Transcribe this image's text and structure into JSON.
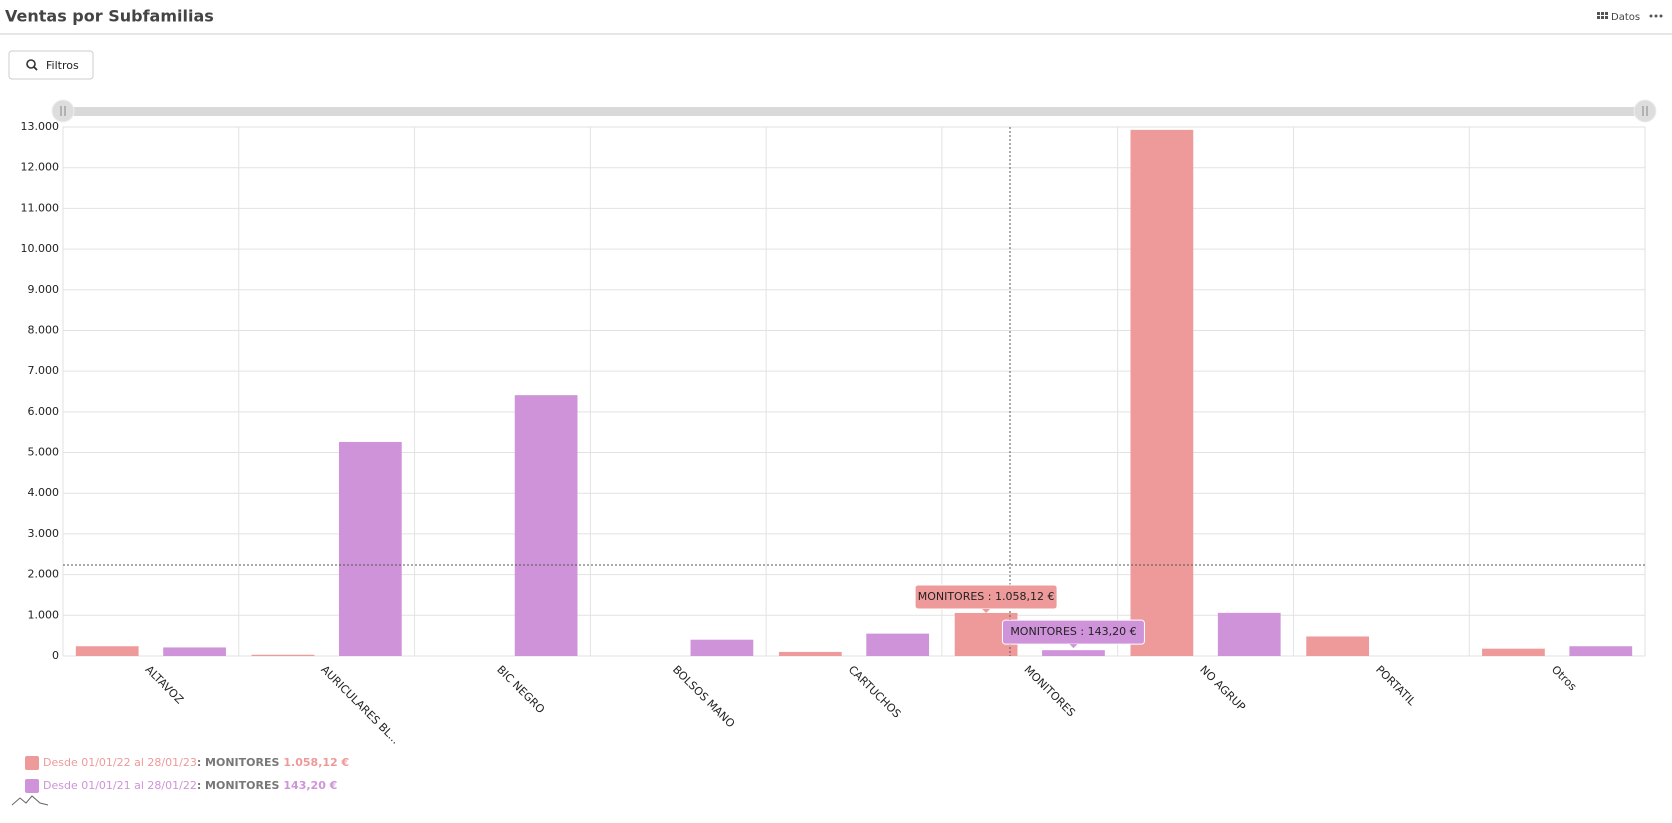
{
  "header": {
    "title": "Ventas por Subfamilias",
    "data_button": "Datos",
    "filter_button": "Filtros"
  },
  "chart_data": {
    "type": "bar",
    "categories": [
      "ALTAVOZ",
      "AURICULARES BL...",
      "BIC NEGRO",
      "BOLSOS MANO",
      "CARTUCHOS",
      "MONITORES",
      "NO AGRUP",
      "PORTATIL",
      "Otros"
    ],
    "series": [
      {
        "name": "Desde 01/01/22 al 28/01/23",
        "color": "#ee9a9a",
        "values": [
          240,
          30,
          0,
          0,
          100,
          1058.12,
          12930,
          480,
          180
        ],
        "value_labels": [
          null,
          null,
          null,
          null,
          null,
          "MONITORES : 1.058,12 €",
          null,
          null,
          null
        ]
      },
      {
        "name": "Desde 01/01/21 al 28/01/22",
        "color": "#cf93d9",
        "values": [
          210,
          5260,
          6410,
          400,
          550,
          143.2,
          1060,
          0,
          240
        ],
        "value_labels": [
          null,
          null,
          null,
          null,
          null,
          "MONITORES : 143,20 €",
          null,
          null,
          null
        ]
      }
    ],
    "legend": [
      {
        "category": ": MONITORES",
        "value": "1.058,12 €"
      },
      {
        "category": ": MONITORES",
        "value": "143,20 €"
      }
    ],
    "ylim": [
      0,
      13000
    ],
    "yticks": [
      0,
      {
        "value": 1000,
        "label": "1.000"
      },
      {
        "value": 2000,
        "label": "2.000"
      },
      {
        "value": 3000,
        "label": "3.000"
      },
      {
        "value": 4000,
        "label": "4.000"
      },
      {
        "value": 5000,
        "label": "5.000"
      },
      {
        "value": 6000,
        "label": "6.000"
      },
      {
        "value": 7000,
        "label": "7.000"
      },
      {
        "value": 8000,
        "label": "8.000"
      },
      {
        "value": 9000,
        "label": "9.000"
      },
      {
        "value": 10000,
        "label": "10.000"
      },
      {
        "value": 11000,
        "label": "11.000"
      },
      {
        "value": 12000,
        "label": "12.000"
      },
      {
        "value": 13000,
        "label": "13.000"
      }
    ],
    "grid": true
  }
}
